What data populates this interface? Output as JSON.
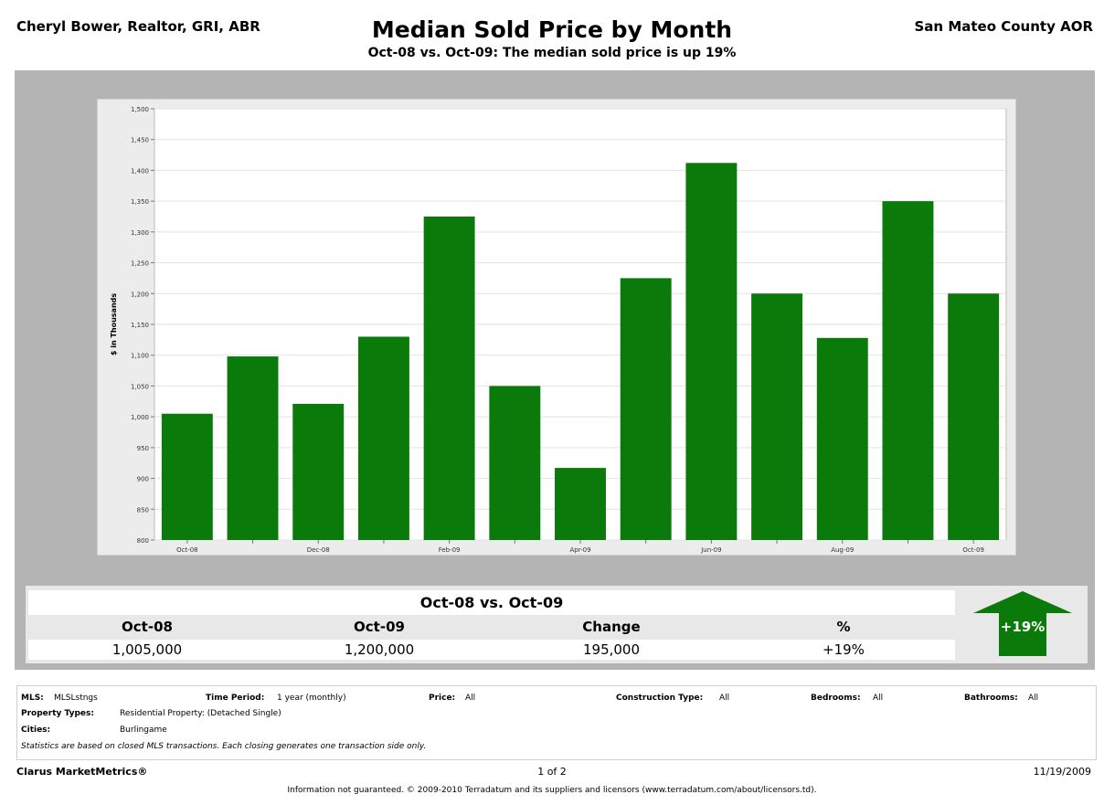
{
  "header": {
    "agent": "Cheryl Bower, Realtor, GRI, ABR",
    "title": "Median Sold Price by Month",
    "subtitle": "Oct-08 vs. Oct-09:  The median sold price is up 19%",
    "region": "San Mateo County AOR"
  },
  "chart_data": {
    "type": "bar",
    "ylabel": "$ in Thousands",
    "ylim": [
      800,
      1500
    ],
    "yticks": [
      "1,500",
      "1,450",
      "1,400",
      "1,350",
      "1,300",
      "1,250",
      "1,200",
      "1,150",
      "1,100",
      "1,050",
      "1,000",
      "950",
      "900",
      "850",
      "800"
    ],
    "tick_labels": [
      "Oct-08",
      "",
      "Dec-08",
      "",
      "Feb-09",
      "",
      "Apr-09",
      "",
      "Jun-09",
      "",
      "Aug-09",
      "",
      "Oct-09"
    ],
    "categories": [
      "Oct-08",
      "Nov-08",
      "Dec-08",
      "Jan-09",
      "Feb-09",
      "Mar-09",
      "Apr-09",
      "May-09",
      "Jun-09",
      "Jul-09",
      "Aug-09",
      "Sep-09",
      "Oct-09"
    ],
    "values": [
      1005,
      1098,
      1021,
      1130,
      1325,
      1050,
      917,
      1225,
      1412,
      1200,
      1128,
      1350,
      1200
    ],
    "bar_color": "#0a7a0a",
    "grid": true
  },
  "summary": {
    "title": "Oct-08 vs. Oct-09",
    "headers": [
      "Oct-08",
      "Oct-09",
      "Change",
      "%"
    ],
    "values": [
      "1,005,000",
      "1,200,000",
      "195,000",
      "+19%"
    ],
    "arrow_label": "+19%",
    "arrow_color": "#0a7a0a"
  },
  "footer": {
    "mls_label": "MLS:",
    "mls_value": "MLSLstngs",
    "time_label": "Time Period:",
    "time_value": "1 year (monthly)",
    "price_label": "Price:",
    "price_value": "All",
    "construction_label": "Construction Type:",
    "construction_value": "All",
    "bedrooms_label": "Bedrooms:",
    "bedrooms_value": "All",
    "bathrooms_label": "Bathrooms:",
    "bathrooms_value": "All",
    "ptypes_label": "Property Types:",
    "ptypes_value": "Residential Property: (Detached Single)",
    "cities_label": "Cities:",
    "cities_value": "Burlingame",
    "note": "Statistics are based on closed MLS transactions.  Each closing generates one transaction side only.",
    "brand": "Clarus MarketMetrics®",
    "page": "1 of 2",
    "date": "11/19/2009",
    "disclaimer": "Information not guaranteed.  © 2009-2010 Terradatum and its suppliers and licensors (www.terradatum.com/about/licensors.td)."
  }
}
